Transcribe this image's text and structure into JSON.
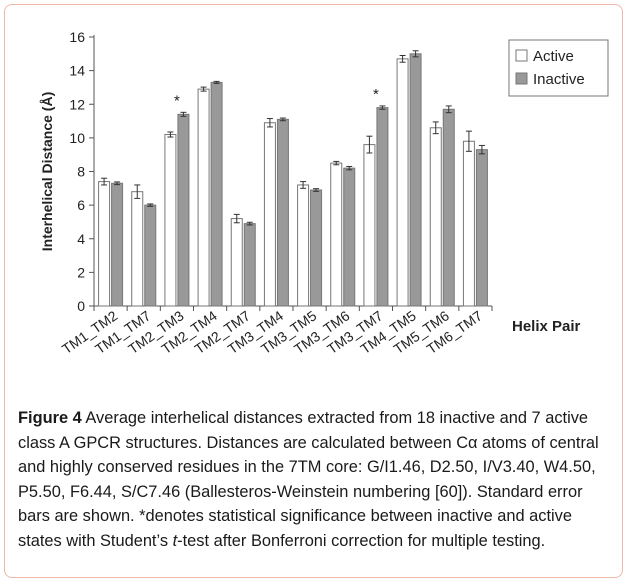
{
  "chart_data": {
    "type": "bar",
    "categories": [
      "TM1_TM2",
      "TM1_TM7",
      "TM2_TM3",
      "TM2_TM4",
      "TM2_TM7",
      "TM3_TM4",
      "TM3_TM5",
      "TM3_TM6",
      "TM3_TM7",
      "TM4_TM5",
      "TM5_TM6",
      "TM6_TM7"
    ],
    "series": [
      {
        "name": "Active",
        "color": "#ffffff",
        "values": [
          7.4,
          6.8,
          10.2,
          12.9,
          5.2,
          10.9,
          7.2,
          8.5,
          9.6,
          14.7,
          10.6,
          9.8
        ],
        "errors": [
          0.2,
          0.4,
          0.15,
          0.12,
          0.25,
          0.25,
          0.2,
          0.1,
          0.5,
          0.2,
          0.35,
          0.6
        ]
      },
      {
        "name": "Inactive",
        "color": "#999999",
        "values": [
          7.3,
          6.0,
          11.4,
          13.3,
          4.9,
          11.1,
          6.9,
          8.2,
          11.8,
          15.0,
          11.7,
          9.3
        ],
        "errors": [
          0.08,
          0.07,
          0.12,
          0.06,
          0.08,
          0.08,
          0.08,
          0.1,
          0.1,
          0.18,
          0.2,
          0.25
        ]
      }
    ],
    "significant": [
      "TM2_TM3",
      "TM3_TM7"
    ],
    "significance_marker": "*",
    "xlabel": "Helix Pair",
    "ylabel": "Interhelical Distance (Å)",
    "ylim": [
      0,
      16
    ],
    "yticks": [
      0,
      2,
      4,
      6,
      8,
      10,
      12,
      14,
      16
    ],
    "grid": false,
    "legend": "top-right"
  },
  "caption": {
    "label": "Figure 4",
    "part1": " Average interhelical distances extracted from 18 inactive and 7 active class A GPCR structures. Distances are calculated between Cα atoms of central and highly conserved residues in the 7TM core: G/I1.46, D2.50, I/V3.40, W4.50, P5.50, F6.44, S/C7.46 (Ballesteros-Weinstein numbering [60]). Standard error bars are shown. *denotes statistical significance between inactive and active states with Student’s ",
    "t": "t",
    "part2": "-test after Bonferroni correction for multiple testing."
  }
}
